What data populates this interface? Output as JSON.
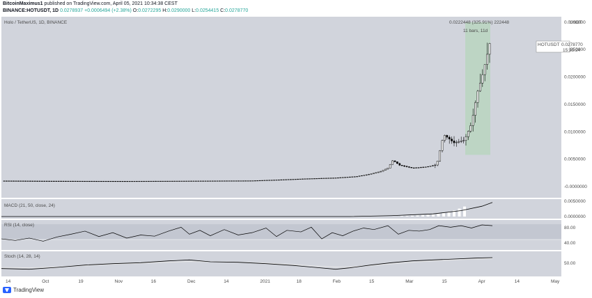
{
  "header": {
    "publisher_line_user": "BitcoinMaximus1",
    "publisher_line_rest": " published on TradingView.com, April 05, 2021 10:34:38 CEST",
    "symbol_line_prefix": "BINANCE:HOTUSDT, 1D ",
    "last_price": "0.0278937",
    "change": "+0.0006494 (+2.38%)",
    "open_label": "O:",
    "open": "0.0272295",
    "high_label": "H:",
    "high": "0.0290000",
    "low_label": "L:",
    "low": "0.0254415",
    "close_label": "C:",
    "close": "0.0278770"
  },
  "colors": {
    "pane_bg": "#d1d4dc",
    "candle": "#000000",
    "highlight": "#a5d6a7",
    "macd_hist": "#ffffff",
    "stoch_slow": "#e6e6e6"
  },
  "main_pane": {
    "title": "Holo / TetherUS, 1D, BINANCE",
    "currency": "USDT",
    "price_tag_symbol": "HOTUSDT",
    "price_tag_value": "0.0278770",
    "price_tag_time": "15:25:24",
    "measure_line1": "0.0222448 (325.91%) 222448",
    "measure_line2": "11 bars, 11d"
  },
  "macd_pane": {
    "title": "MACD (21, 50, close, 24)",
    "ticks": [
      "0.0050000",
      "0.0000000"
    ]
  },
  "rsi_pane": {
    "title": "RSI (14, close)",
    "ticks": [
      "80.00",
      "40.00"
    ]
  },
  "stoch_pane": {
    "title": "Stoch (14, 28, 14)",
    "ticks": [
      "50.00"
    ]
  },
  "chart_data": {
    "type": "candlestick",
    "symbol": "HOTUSDT",
    "ylim": [
      -0.0005,
      0.031
    ],
    "yticks": [
      0.03,
      0.025,
      0.02,
      0.015,
      0.01,
      0.005,
      -0.0
    ],
    "ytick_labels": [
      "0.0300000",
      "0.0250000",
      "0.0200000",
      "0.0150000",
      "0.0100000",
      "0.0050000",
      "-0.0000000"
    ],
    "xtick_labels": [
      "14",
      "Oct",
      "19",
      "Nov",
      "16",
      "Dec",
      "14",
      "2021",
      "18",
      "Feb",
      "15",
      "Mar",
      "15",
      "Apr",
      "14",
      "May"
    ],
    "measure": {
      "change": 0.0222448,
      "percent": 325.91,
      "bars": 11,
      "days": 11
    },
    "price_path": [
      [
        0,
        0.00105
      ],
      [
        60,
        0.00102
      ],
      [
        120,
        0.001
      ],
      [
        180,
        0.00099
      ],
      [
        240,
        0.00101
      ],
      [
        300,
        0.00104
      ],
      [
        360,
        0.00108
      ],
      [
        400,
        0.00125
      ],
      [
        440,
        0.00145
      ],
      [
        480,
        0.0016
      ],
      [
        510,
        0.00185
      ],
      [
        530,
        0.0023
      ],
      [
        545,
        0.0028
      ],
      [
        555,
        0.0034
      ],
      [
        562,
        0.0048
      ],
      [
        572,
        0.0039
      ],
      [
        590,
        0.0034
      ],
      [
        610,
        0.0036
      ],
      [
        625,
        0.004
      ],
      [
        630,
        0.0068
      ],
      [
        635,
        0.0095
      ],
      [
        650,
        0.008
      ],
      [
        665,
        0.0085
      ],
      [
        675,
        0.0115
      ],
      [
        683,
        0.017
      ],
      [
        690,
        0.02
      ],
      [
        697,
        0.0238
      ],
      [
        704,
        0.02788
      ]
    ],
    "macd": [
      [
        0,
        0
      ],
      [
        500,
        0
      ],
      [
        560,
        0.0003
      ],
      [
        620,
        0.0009
      ],
      [
        660,
        0.002
      ],
      [
        690,
        0.0035
      ],
      [
        705,
        0.0048
      ]
    ],
    "macd_hist": [
      0.0002,
      0.0002,
      0.0003,
      0.0004,
      0.0005,
      0.0006,
      0.0007,
      0.0009,
      0.0012,
      0.0016,
      0.0021,
      0.0027,
      0.0034
    ],
    "rsi": [
      [
        0,
        50
      ],
      [
        20,
        46
      ],
      [
        40,
        52
      ],
      [
        60,
        44
      ],
      [
        80,
        55
      ],
      [
        100,
        62
      ],
      [
        120,
        70
      ],
      [
        140,
        56
      ],
      [
        160,
        66
      ],
      [
        180,
        52
      ],
      [
        200,
        60
      ],
      [
        220,
        57
      ],
      [
        240,
        70
      ],
      [
        258,
        80
      ],
      [
        270,
        62
      ],
      [
        285,
        72
      ],
      [
        300,
        58
      ],
      [
        320,
        74
      ],
      [
        340,
        60
      ],
      [
        360,
        66
      ],
      [
        380,
        78
      ],
      [
        395,
        56
      ],
      [
        410,
        72
      ],
      [
        430,
        68
      ],
      [
        445,
        80
      ],
      [
        460,
        50
      ],
      [
        475,
        66
      ],
      [
        490,
        58
      ],
      [
        505,
        70
      ],
      [
        520,
        78
      ],
      [
        535,
        74
      ],
      [
        555,
        84
      ],
      [
        570,
        62
      ],
      [
        585,
        72
      ],
      [
        600,
        70
      ],
      [
        615,
        74
      ],
      [
        628,
        84
      ],
      [
        645,
        80
      ],
      [
        660,
        84
      ],
      [
        675,
        78
      ],
      [
        690,
        86
      ],
      [
        705,
        84
      ]
    ],
    "stoch_k": [
      [
        0,
        25
      ],
      [
        40,
        22
      ],
      [
        80,
        30
      ],
      [
        120,
        40
      ],
      [
        160,
        46
      ],
      [
        200,
        50
      ],
      [
        240,
        58
      ],
      [
        270,
        62
      ],
      [
        300,
        54
      ],
      [
        340,
        52
      ],
      [
        380,
        46
      ],
      [
        420,
        38
      ],
      [
        450,
        30
      ],
      [
        480,
        22
      ],
      [
        500,
        28
      ],
      [
        530,
        40
      ],
      [
        560,
        50
      ],
      [
        590,
        58
      ],
      [
        620,
        62
      ],
      [
        650,
        66
      ],
      [
        680,
        70
      ],
      [
        705,
        72
      ]
    ],
    "stoch_d": [
      [
        0,
        30
      ],
      [
        40,
        28
      ],
      [
        80,
        32
      ],
      [
        120,
        38
      ],
      [
        160,
        44
      ],
      [
        200,
        48
      ],
      [
        240,
        52
      ],
      [
        270,
        55
      ],
      [
        300,
        54
      ],
      [
        340,
        52
      ],
      [
        380,
        48
      ],
      [
        420,
        42
      ],
      [
        450,
        36
      ],
      [
        480,
        32
      ],
      [
        500,
        32
      ],
      [
        530,
        38
      ],
      [
        560,
        45
      ],
      [
        590,
        52
      ],
      [
        620,
        58
      ],
      [
        650,
        62
      ],
      [
        680,
        66
      ],
      [
        705,
        68
      ]
    ]
  },
  "footer": {
    "brand": "TradingView"
  }
}
